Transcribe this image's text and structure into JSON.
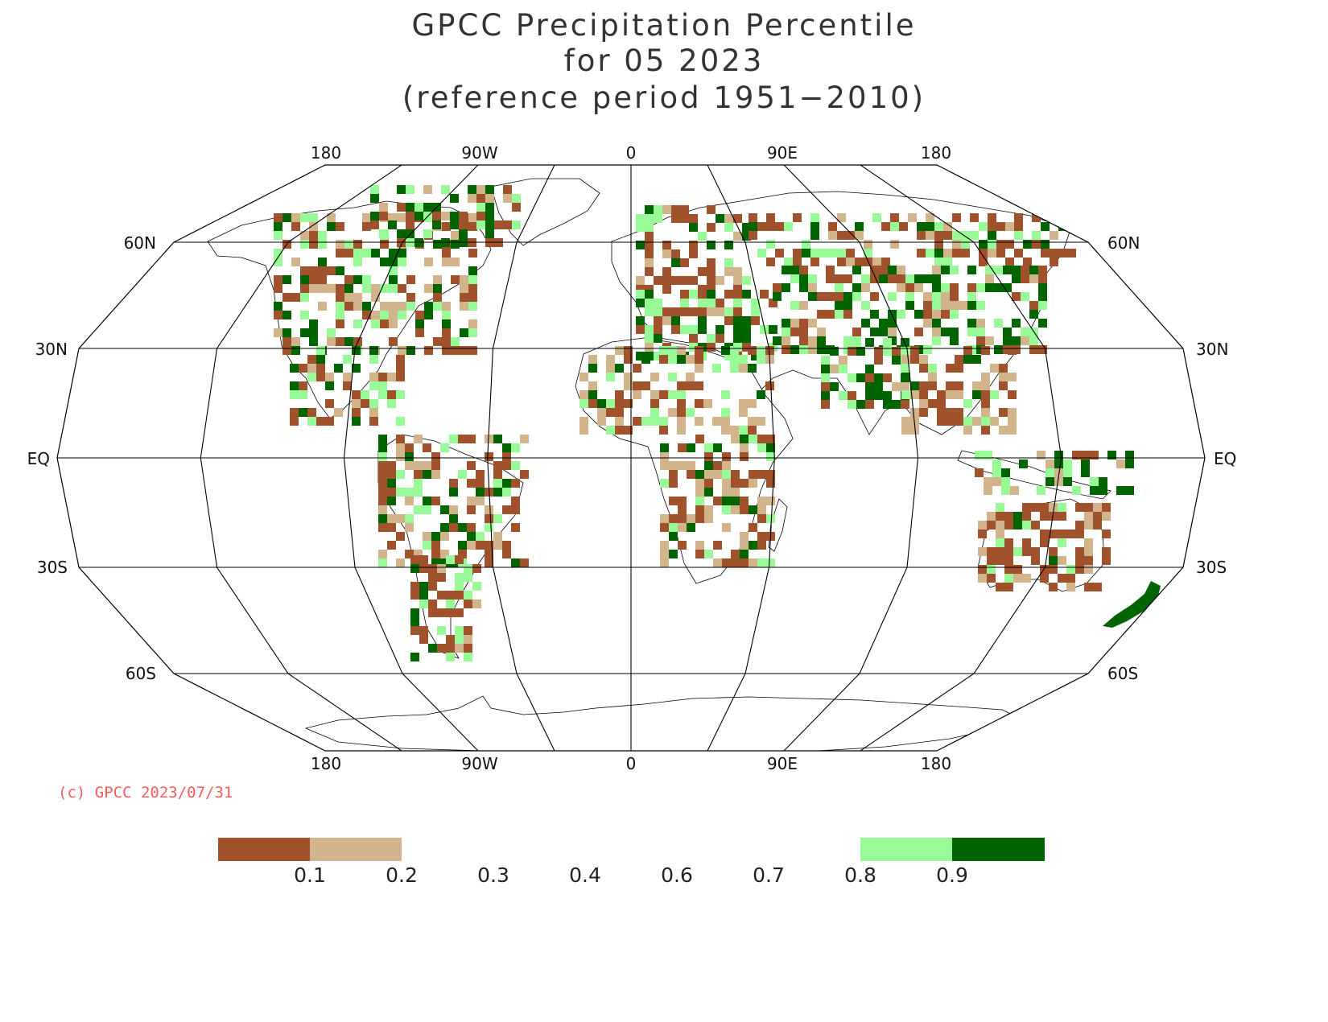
{
  "title_lines": [
    "GPCC Precipitation Percentile",
    "for 05 2023",
    "(reference period 1951−2010)"
  ],
  "longitude_labels": [
    "180",
    "90W",
    "0",
    "90E",
    "180"
  ],
  "latitude_labels": {
    "60N": "60N",
    "30N": "30N",
    "EQ": "EQ",
    "30S": "30S",
    "60S": "60S"
  },
  "credit": "(c) GPCC 2023/07/31",
  "colors": {
    "very_dry": "#a0522d",
    "dry": "#d2b48c",
    "wet": "#98fb98",
    "very_wet": "#006400",
    "grid": "#000000",
    "credit": "#ff5a5a"
  },
  "legend": {
    "ticks": [
      "0.1",
      "0.2",
      "0.3",
      "0.4",
      "0.6",
      "0.7",
      "0.8",
      "0.9"
    ],
    "bins": [
      {
        "range": "<0.1",
        "color": "#a0522d"
      },
      {
        "range": "0.1-0.2",
        "color": "#d2b48c"
      },
      {
        "range": "0.8-0.9",
        "color": "#98fb98"
      },
      {
        "range": ">0.9",
        "color": "#006400"
      }
    ]
  },
  "map_data": {
    "projection": "Robinson",
    "central_longitude": 0,
    "meridians_deg": [
      -180,
      -135,
      -90,
      -45,
      0,
      45,
      90,
      135,
      180
    ],
    "parallels_deg": [
      -60,
      -30,
      0,
      30,
      60
    ]
  }
}
